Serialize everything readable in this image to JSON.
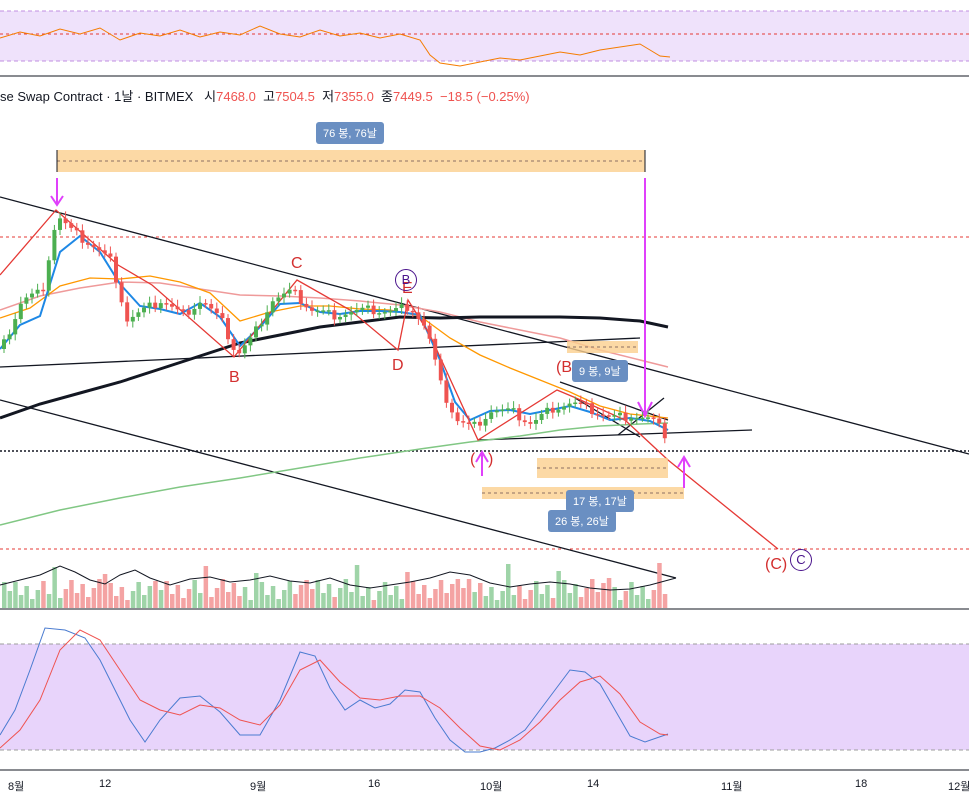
{
  "header": {
    "symbol": "se Swap Contract · 1날 · BITMEX",
    "open_label": "시",
    "open": "7468.0",
    "high_label": "고",
    "high": "7504.5",
    "low_label": "저",
    "low": "7355.0",
    "close_label": "종",
    "close": "7449.5",
    "change": "−18.5 (−0.25%)"
  },
  "annotations": {
    "range_76": "76 봉, 76날",
    "range_9": "9 봉, 9날",
    "range_17": "17 봉, 17날",
    "range_26": "26 봉, 26날",
    "wave_b1": "B",
    "wave_b2": "B",
    "wave_c1": "C",
    "wave_d": "D",
    "wave_e": "E",
    "wave_B_paren": "(B",
    "wave_A_paren": "(",
    "wave_A_paren_close": ")",
    "wave_C_paren": "(C)",
    "circle_B": "B",
    "circle_C": "C"
  },
  "x_axis": {
    "ticks": [
      "8월",
      "12",
      "9월",
      "16",
      "10월",
      "14",
      "11월",
      "18",
      "12월"
    ]
  },
  "colors": {
    "up": "#4caf50",
    "down": "#ef5350",
    "annotation_arrow": "#e040fb",
    "wave_line": "#e53935",
    "panel_fill": "#e8d4fb"
  },
  "chart_data": {
    "type": "candlestick",
    "series": [
      {
        "name": "Price"
      },
      {
        "name": "EMA fast"
      },
      {
        "name": "EMA mid"
      },
      {
        "name": "MA"
      },
      {
        "name": "MA long"
      },
      {
        "name": "Volume"
      },
      {
        "name": "Stochastic %K"
      },
      {
        "name": "Stochastic %D"
      }
    ]
  }
}
